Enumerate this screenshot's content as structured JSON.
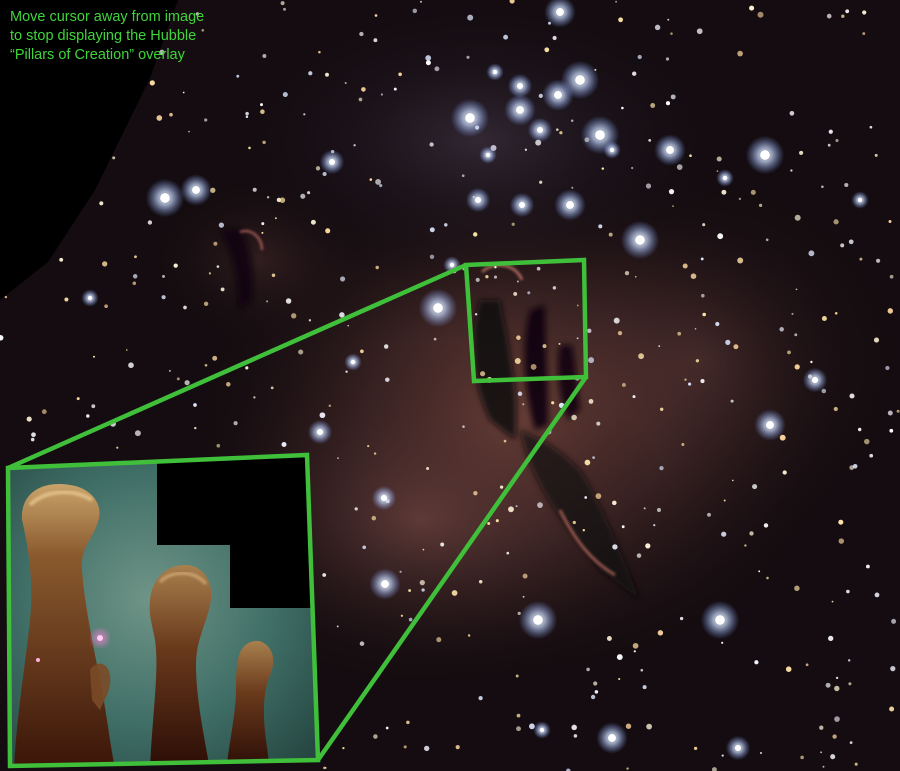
{
  "caption": {
    "lines": [
      "Move cursor away from image",
      "to stop displaying the Hubble",
      "“Pillars of Creation” overlay"
    ]
  },
  "colors": {
    "caption_text": "#3fd43a",
    "overlay_frame": "#3fbf3a",
    "sky_background": "#000000",
    "nebula_glow": "#7a4a3e",
    "hubble_inset_teal": "#3a6f66",
    "hubble_pillar_brown": "#5a2a14"
  }
}
